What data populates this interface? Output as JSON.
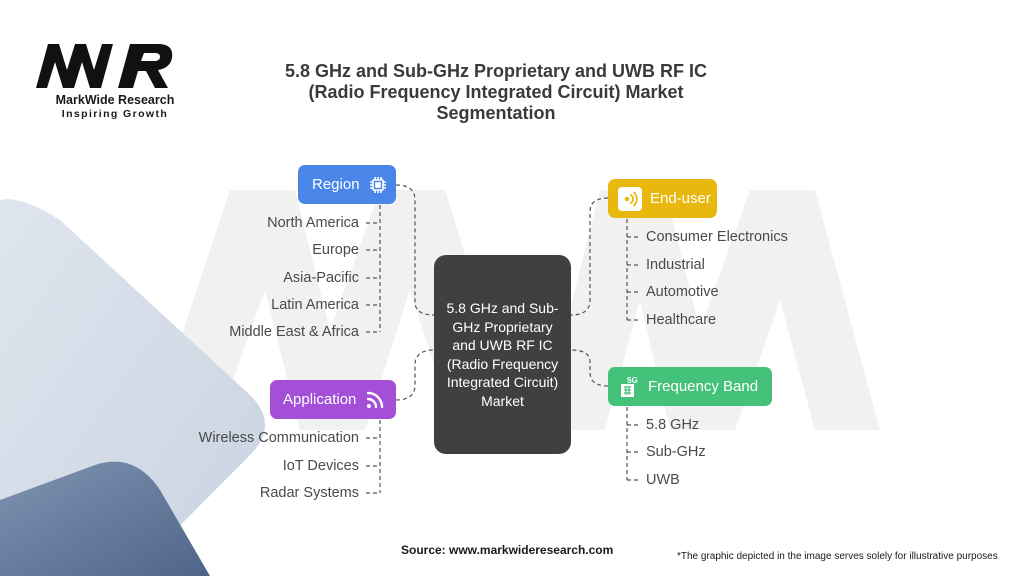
{
  "logo": {
    "name": "MarkWide Research",
    "tagline": "Inspiring Growth"
  },
  "title": "5.8 GHz and Sub-GHz Proprietary and UWB RF IC (Radio Frequency Integrated Circuit) Market Segmentation",
  "center_label": "5.8 GHz and Sub-GHz Proprietary and UWB RF IC (Radio Frequency Integrated Circuit) Market",
  "segments": {
    "region": {
      "label": "Region",
      "icon": "chip-icon",
      "color": "#4a86e8",
      "items": [
        "North America",
        "Europe",
        "Asia-Pacific",
        "Latin America",
        "Middle East & Africa"
      ]
    },
    "application": {
      "label": "Application",
      "icon": "wifi-signal-icon",
      "color": "#a34fd8",
      "items": [
        "Wireless Communication",
        "IoT Devices",
        "Radar Systems"
      ]
    },
    "end_user": {
      "label": "End-user",
      "icon": "broadcast-icon",
      "color": "#e8b80f",
      "items": [
        "Consumer Electronics",
        "Industrial",
        "Automotive",
        "Healthcare"
      ]
    },
    "frequency_band": {
      "label": "Frequency Band",
      "icon": "5g-sim-icon",
      "color": "#45c27a",
      "items": [
        "5.8 GHz",
        "Sub-GHz",
        "UWB"
      ]
    }
  },
  "footer": {
    "source": "Source: www.markwideresearch.com",
    "disclaimer": "*The graphic depicted in the image serves solely for illustrative purposes"
  }
}
